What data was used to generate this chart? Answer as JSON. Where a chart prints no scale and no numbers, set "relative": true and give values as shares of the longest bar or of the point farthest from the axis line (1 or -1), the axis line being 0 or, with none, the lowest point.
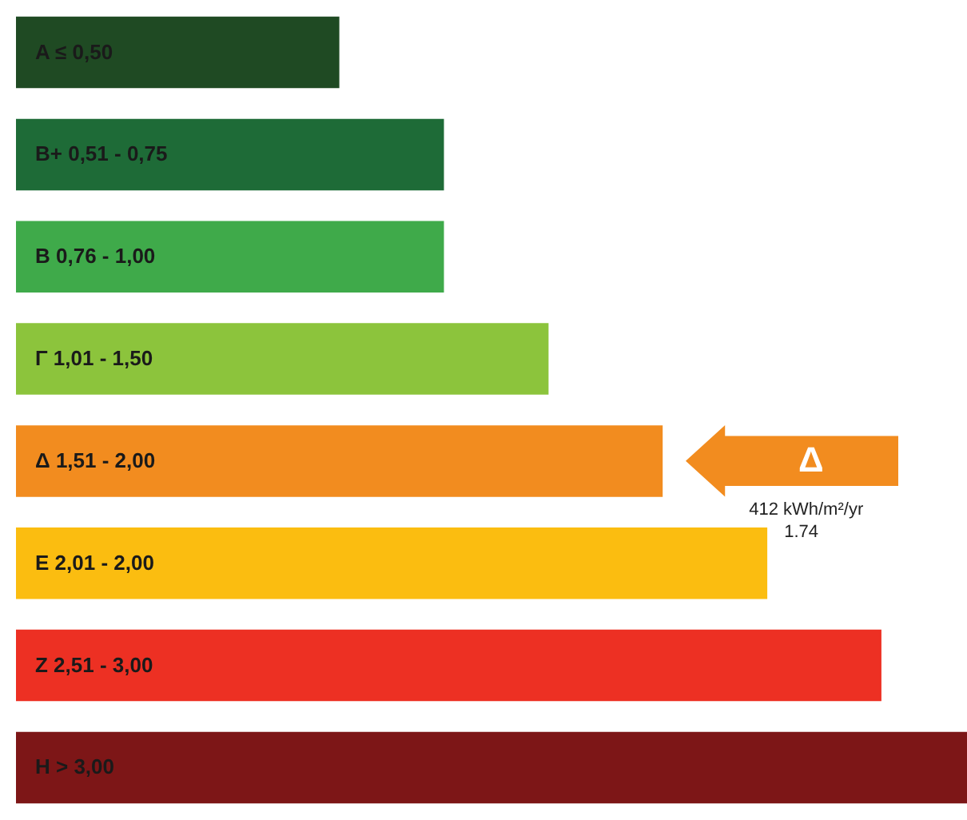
{
  "chart_data": {
    "type": "bar",
    "orientation": "horizontal",
    "relative": true,
    "categories": [
      "A   ≤ 0,50",
      "B+   0,51 - 0,75",
      "B    0,76 - 1,00",
      "Γ    1,01 - 1,50",
      "Δ    1,51 - 2,00",
      "E    2,01 - 2,00",
      "Z    2,51 - 3,00",
      "H    > 3,00"
    ],
    "values": [
      0.34,
      0.45,
      0.45,
      0.56,
      0.68,
      0.79,
      0.91,
      1
    ],
    "colors": [
      "#1f4a23",
      "#1e6b37",
      "#3faa4a",
      "#8cc43c",
      "#f28c1f",
      "#fbbd10",
      "#ed3023",
      "#7d1617"
    ],
    "annotations": [
      "Δ",
      "412  kWh/m²/yr",
      "1.74"
    ]
  }
}
